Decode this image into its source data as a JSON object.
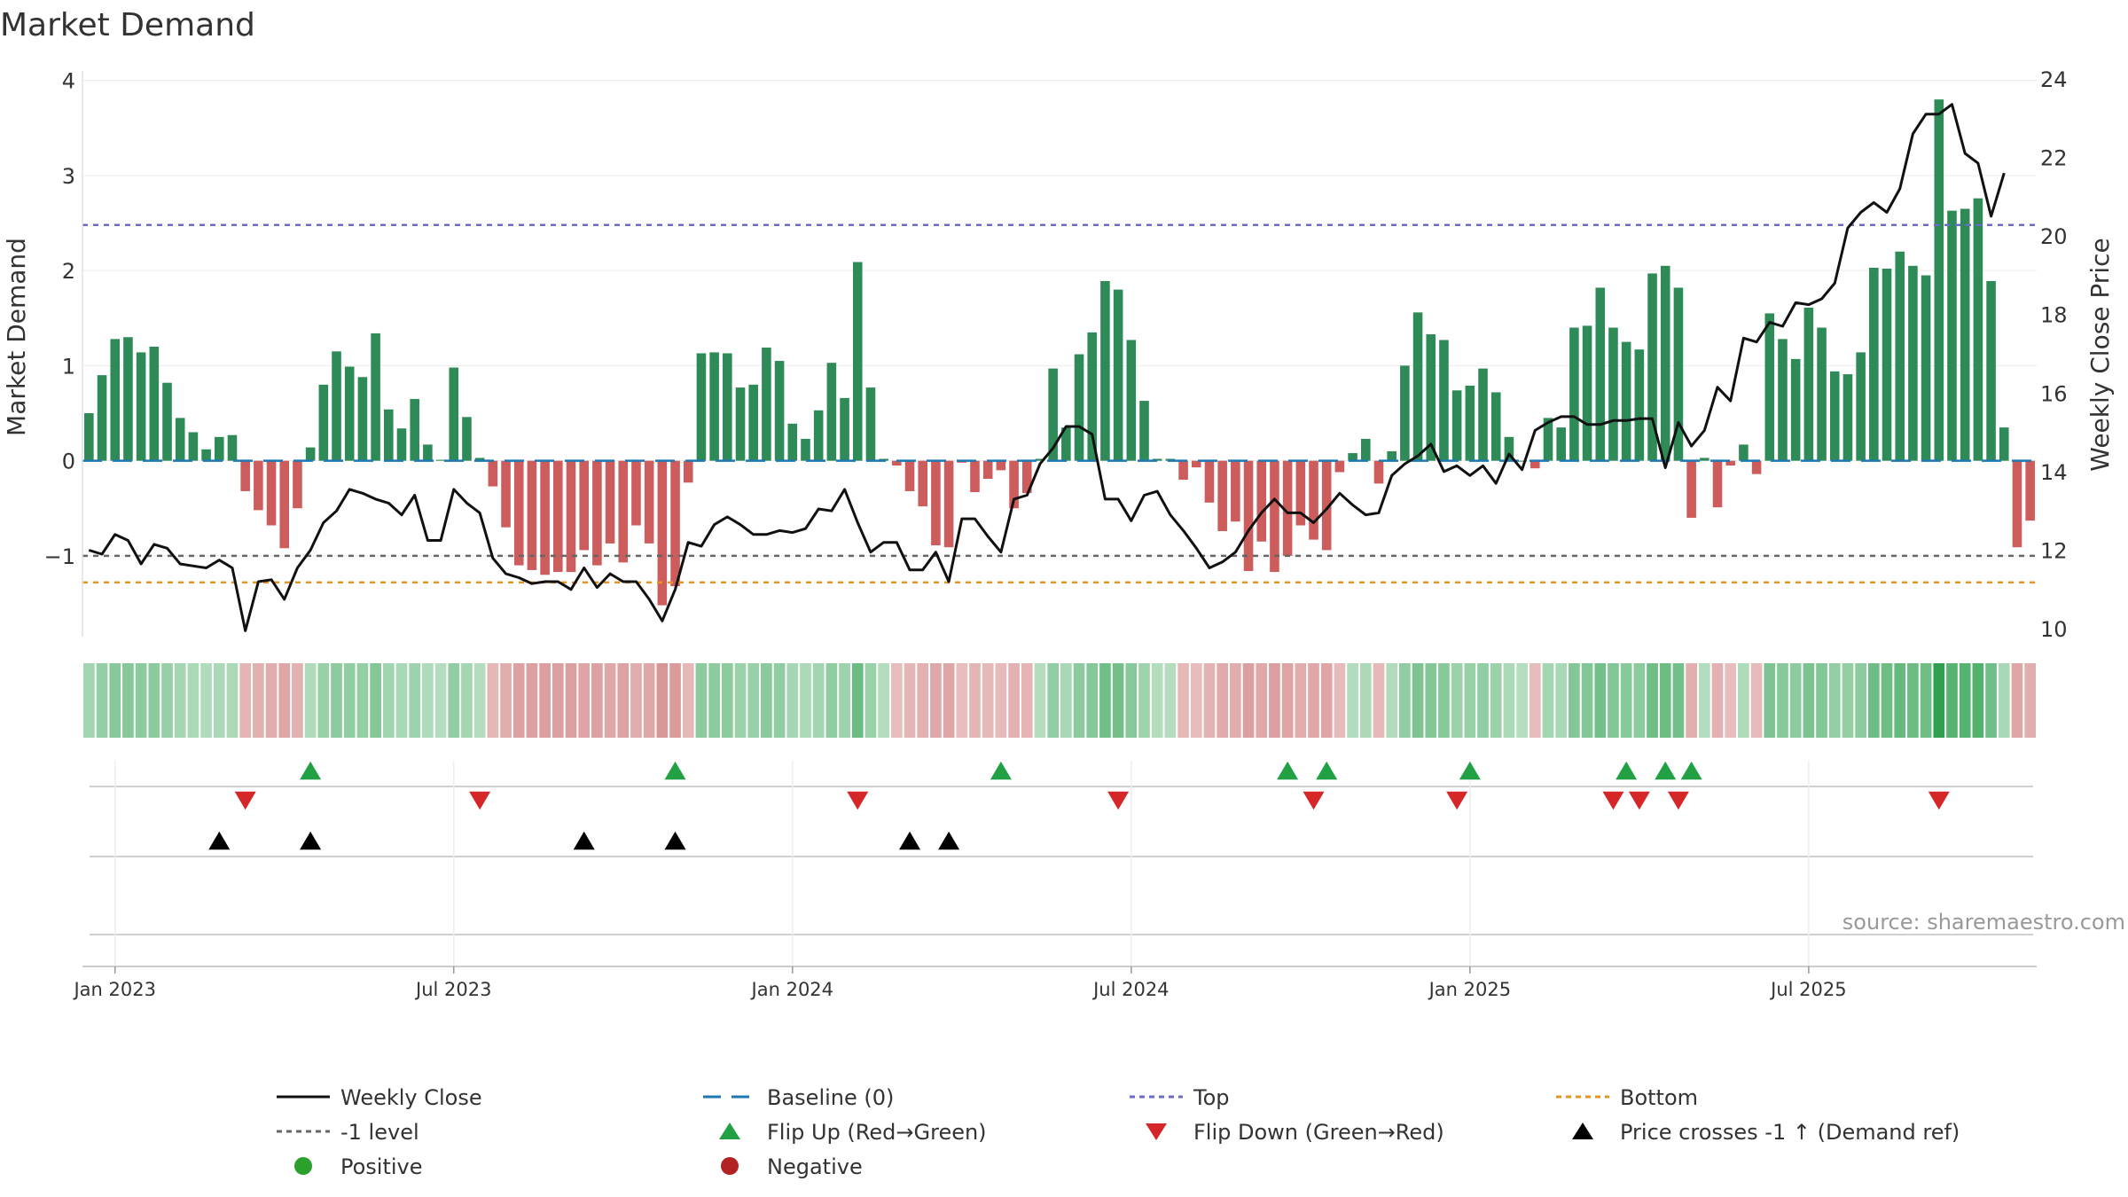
{
  "chart_data": {
    "type": "bar",
    "title": "Market Demand",
    "ylabel": "Market Demand",
    "y2label": "Weekly Close Price",
    "ylim": [
      -1.85,
      4.1
    ],
    "y2lim": [
      9.8,
      24.2
    ],
    "yticks": [
      {
        "v": 4,
        "label": "4"
      },
      {
        "v": 3,
        "label": "3"
      },
      {
        "v": 2,
        "label": "2"
      },
      {
        "v": 1,
        "label": "1"
      },
      {
        "v": 0,
        "label": "0"
      },
      {
        "v": -1,
        "label": "−1"
      }
    ],
    "y2ticks": [
      {
        "v": 24,
        "label": "24"
      },
      {
        "v": 22,
        "label": "22"
      },
      {
        "v": 20,
        "label": "20"
      },
      {
        "v": 18,
        "label": "18"
      },
      {
        "v": 16,
        "label": "16"
      },
      {
        "v": 14,
        "label": "14"
      },
      {
        "v": 12,
        "label": "12"
      },
      {
        "v": 10,
        "label": "10"
      }
    ],
    "xticks": [
      {
        "i": 2,
        "label": "Jan 2023"
      },
      {
        "i": 28,
        "label": "Jul 2023"
      },
      {
        "i": 54,
        "label": "Jan 2024"
      },
      {
        "i": 80,
        "label": "Jul 2024"
      },
      {
        "i": 106,
        "label": "Jan 2025"
      },
      {
        "i": 132,
        "label": "Jul 2025"
      }
    ],
    "levels": {
      "top": 2.48,
      "bottom": -1.28,
      "minus_one": -1.0,
      "baseline": 0
    },
    "demand": [
      0.5,
      0.9,
      1.28,
      1.3,
      1.14,
      1.2,
      0.82,
      0.45,
      0.3,
      0.12,
      0.25,
      0.27,
      -0.32,
      -0.52,
      -0.68,
      -0.92,
      -0.5,
      0.14,
      0.8,
      1.15,
      0.99,
      0.88,
      1.34,
      0.54,
      0.34,
      0.65,
      0.17,
      0.01,
      0.98,
      0.46,
      0.03,
      -0.27,
      -0.7,
      -1.1,
      -1.15,
      -1.2,
      -1.17,
      -1.17,
      -0.94,
      -1.1,
      -0.87,
      -1.07,
      -0.68,
      -0.87,
      -1.52,
      -1.32,
      -0.23,
      1.13,
      1.14,
      1.13,
      0.77,
      0.8,
      1.19,
      1.05,
      0.39,
      0.23,
      0.53,
      1.03,
      0.66,
      2.09,
      0.77,
      0.02,
      -0.05,
      -0.32,
      -0.48,
      -0.89,
      -0.91,
      -0.02,
      -0.33,
      -0.19,
      -0.1,
      -0.5,
      -0.34,
      0.02,
      0.97,
      0.35,
      1.12,
      1.35,
      1.89,
      1.8,
      1.27,
      0.63,
      0.02,
      0.02,
      -0.2,
      -0.07,
      -0.44,
      -0.74,
      -0.64,
      -1.16,
      -0.85,
      -1.17,
      -1.0,
      -0.68,
      -0.83,
      -0.94,
      -0.12,
      0.08,
      0.23,
      -0.24,
      0.1,
      1.0,
      1.56,
      1.33,
      1.27,
      0.74,
      0.79,
      0.97,
      0.72,
      0.25,
      0.0,
      -0.08,
      0.45,
      0.35,
      1.4,
      1.42,
      1.82,
      1.4,
      1.25,
      1.17,
      1.97,
      2.05,
      1.82,
      -0.6,
      0.03,
      -0.49,
      -0.05,
      0.17,
      -0.14,
      1.55,
      1.28,
      1.07,
      1.61,
      1.4,
      0.94,
      0.91,
      1.14,
      2.03,
      2.02,
      2.2,
      2.05,
      1.95,
      3.8,
      2.63,
      2.65,
      2.76,
      1.89,
      0.35,
      -0.91,
      -0.63
    ],
    "price": [
      12.0,
      11.9,
      12.4,
      12.25,
      11.65,
      12.15,
      12.05,
      11.65,
      11.6,
      11.55,
      11.75,
      11.55,
      9.95,
      11.2,
      11.25,
      10.75,
      11.55,
      12.0,
      12.7,
      13.0,
      13.55,
      13.45,
      13.3,
      13.2,
      12.9,
      13.4,
      12.25,
      12.25,
      13.55,
      13.2,
      12.95,
      11.8,
      11.4,
      11.3,
      11.15,
      11.2,
      11.2,
      11.0,
      11.55,
      11.05,
      11.4,
      11.2,
      11.2,
      10.75,
      10.2,
      11.0,
      12.2,
      12.1,
      12.65,
      12.85,
      12.65,
      12.4,
      12.4,
      12.5,
      12.45,
      12.55,
      13.05,
      13.0,
      13.55,
      12.7,
      11.95,
      12.2,
      12.2,
      11.5,
      11.5,
      11.95,
      11.2,
      12.8,
      12.8,
      12.35,
      11.95,
      13.3,
      13.4,
      14.2,
      14.6,
      15.15,
      15.15,
      14.95,
      13.3,
      13.3,
      12.75,
      13.4,
      13.5,
      12.9,
      12.5,
      12.05,
      11.55,
      11.7,
      11.95,
      12.5,
      12.95,
      13.3,
      12.95,
      12.95,
      12.7,
      13.05,
      13.45,
      13.15,
      12.9,
      12.95,
      13.9,
      14.2,
      14.4,
      14.7,
      14.0,
      14.15,
      13.9,
      14.15,
      13.7,
      14.45,
      14.05,
      15.05,
      15.25,
      15.4,
      15.4,
      15.2,
      15.2,
      15.3,
      15.3,
      15.35,
      15.35,
      14.1,
      15.25,
      14.65,
      15.05,
      16.15,
      15.8,
      17.4,
      17.3,
      17.8,
      17.7,
      18.3,
      18.25,
      18.4,
      18.8,
      20.2,
      20.6,
      20.85,
      20.6,
      21.2,
      22.6,
      23.1,
      23.1,
      23.35,
      22.1,
      21.85,
      20.5,
      21.6
    ],
    "flip_up": [
      17,
      45,
      70,
      92,
      95,
      106,
      118,
      121,
      123
    ],
    "flip_down": [
      12,
      30,
      59,
      79,
      94,
      105,
      117,
      119,
      122,
      142
    ],
    "price_cross": [
      10,
      17,
      38,
      45,
      63,
      66
    ],
    "source": "source: sharemaestro.com",
    "legend": [
      {
        "key": "weekly_close",
        "label": "Weekly Close"
      },
      {
        "key": "baseline",
        "label": "Baseline (0)"
      },
      {
        "key": "top",
        "label": "Top"
      },
      {
        "key": "bottom",
        "label": "Bottom"
      },
      {
        "key": "minus_one",
        "label": "-1 level"
      },
      {
        "key": "flip_up",
        "label": "Flip Up (Red→Green)"
      },
      {
        "key": "flip_down",
        "label": "Flip Down (Green→Red)"
      },
      {
        "key": "price_cross",
        "label": "Price crosses -1 ↑ (Demand ref)"
      },
      {
        "key": "positive",
        "label": "Positive"
      },
      {
        "key": "negative",
        "label": "Negative"
      }
    ],
    "colors": {
      "positive": "#2e8b57",
      "negative": "#cd5c5c",
      "price": "#111111",
      "baseline": "#1f77b4",
      "top": "#6a6acd",
      "bottom": "#e69520",
      "minus_one": "#666666",
      "flip_up": "#22a044",
      "flip_down": "#d62728",
      "cross": "#000000",
      "positive_dot": "#2ca02c",
      "negative_dot": "#b22222"
    }
  }
}
